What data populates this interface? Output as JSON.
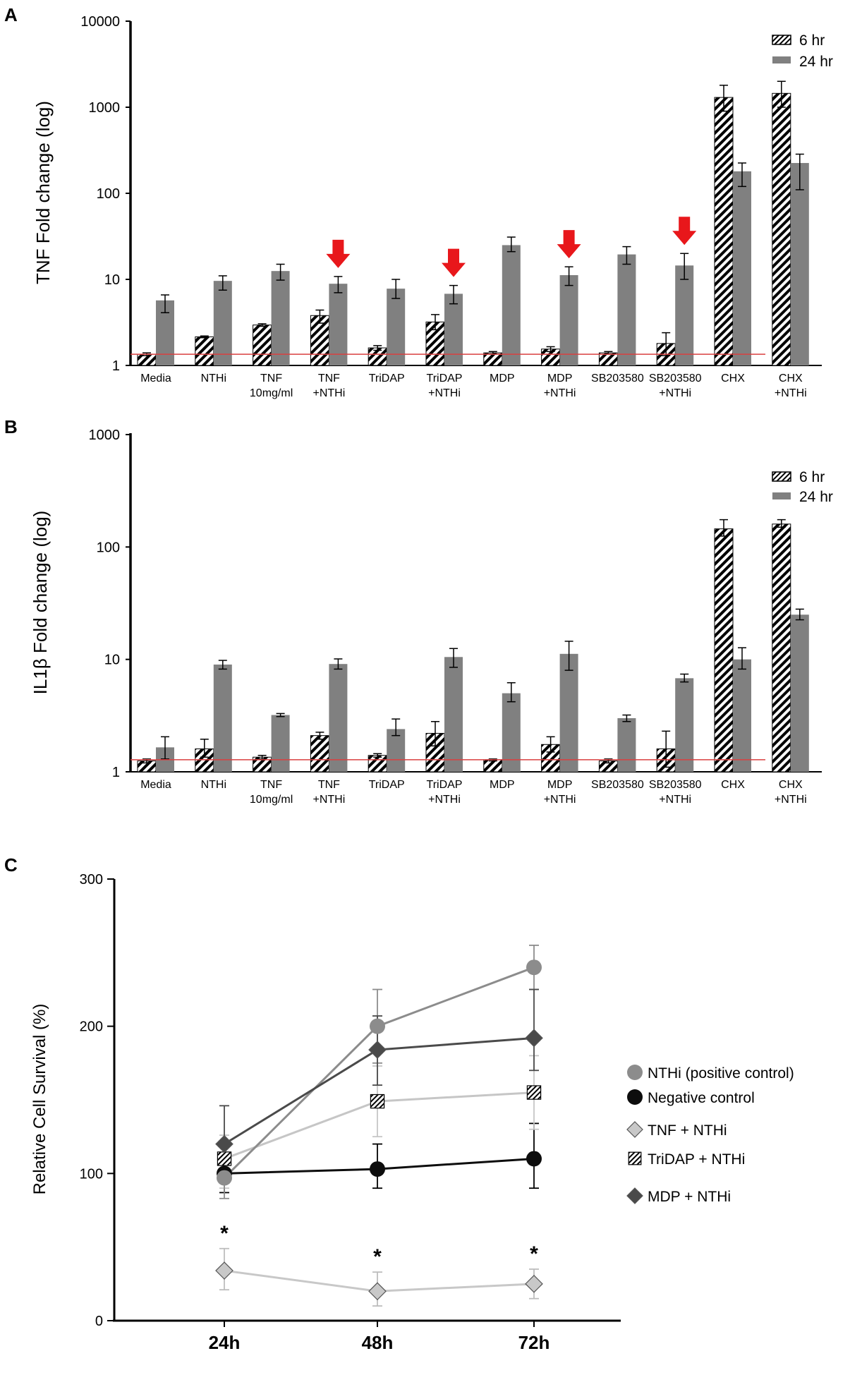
{
  "chart_data": [
    {
      "panel": "A",
      "type": "bar",
      "scale": "log",
      "ylabel": "TNF Fold change (log)",
      "ylim": [
        1,
        10000
      ],
      "yticks": [
        "1",
        "10",
        "100",
        "1000",
        "10000"
      ],
      "categories": [
        [
          "Media"
        ],
        [
          "NTHi"
        ],
        [
          "TNF",
          "10mg/ml"
        ],
        [
          "TNF",
          "+NTHi"
        ],
        [
          "TriDAP"
        ],
        [
          "TriDAP",
          "+NTHi"
        ],
        [
          "MDP"
        ],
        [
          "MDP",
          "+NTHi"
        ],
        [
          "SB203580"
        ],
        [
          "SB203580",
          "+NTHi"
        ],
        [
          "CHX"
        ],
        [
          "CHX",
          "+NTHi"
        ]
      ],
      "series": [
        {
          "name": "6 hr",
          "values": [
            1.35,
            2.15,
            2.95,
            3.8,
            1.6,
            3.2,
            1.4,
            1.55,
            1.4,
            1.8,
            1300,
            1450
          ],
          "err_low": [
            1.3,
            2.1,
            2.85,
            3.1,
            1.5,
            2.6,
            1.35,
            1.45,
            1.35,
            1.3,
            900,
            1000
          ],
          "err_high": [
            1.4,
            2.2,
            3.05,
            4.4,
            1.7,
            3.9,
            1.45,
            1.65,
            1.45,
            2.4,
            1800,
            2000
          ]
        },
        {
          "name": "24 hr",
          "values": [
            5.7,
            9.6,
            12.5,
            8.9,
            7.8,
            6.8,
            25.0,
            11.2,
            19.5,
            14.5,
            180,
            225
          ],
          "err_low": [
            4.1,
            7.5,
            9.8,
            7.0,
            6.0,
            5.2,
            21.0,
            8.5,
            15.0,
            10.0,
            120,
            110
          ],
          "err_high": [
            6.6,
            11.0,
            15.0,
            10.8,
            10.0,
            8.5,
            31.0,
            14.0,
            24.0,
            20.0,
            225,
            285
          ]
        }
      ],
      "baseline": 1.35,
      "arrows_over_categories": [
        3,
        5,
        7,
        9
      ],
      "legend_position": "top-right"
    },
    {
      "panel": "B",
      "type": "bar",
      "scale": "log",
      "ylabel": "IL1β Fold change (log)",
      "ylim": [
        1,
        1000
      ],
      "yticks": [
        "1",
        "10",
        "100",
        "1000"
      ],
      "categories": [
        [
          "Media"
        ],
        [
          "NTHi"
        ],
        [
          "TNF",
          "10mg/ml"
        ],
        [
          "TNF",
          "+NTHi"
        ],
        [
          "TriDAP"
        ],
        [
          "TriDAP",
          "+NTHi"
        ],
        [
          "MDP"
        ],
        [
          "MDP",
          "+NTHi"
        ],
        [
          "SB203580"
        ],
        [
          "SB203580",
          "+NTHi"
        ],
        [
          "CHX"
        ],
        [
          "CHX",
          "+NTHi"
        ]
      ],
      "series": [
        {
          "name": "6 hr",
          "values": [
            1.25,
            1.6,
            1.35,
            2.1,
            1.4,
            2.2,
            1.28,
            1.75,
            1.25,
            1.6,
            145,
            160
          ],
          "err_low": [
            1.2,
            1.35,
            1.3,
            1.95,
            1.35,
            1.7,
            1.25,
            1.5,
            1.2,
            1.1,
            125,
            150
          ],
          "err_high": [
            1.3,
            1.95,
            1.4,
            2.25,
            1.45,
            2.8,
            1.3,
            2.05,
            1.3,
            2.3,
            175,
            175
          ]
        },
        {
          "name": "24 hr",
          "values": [
            1.65,
            9.0,
            3.2,
            9.1,
            2.4,
            10.5,
            5.0,
            11.2,
            3.0,
            6.8,
            10.0,
            25.0
          ],
          "err_low": [
            1.3,
            8.2,
            3.1,
            8.2,
            2.1,
            8.5,
            4.2,
            8.0,
            2.8,
            6.3,
            8.2,
            22.5
          ],
          "err_high": [
            2.05,
            9.8,
            3.3,
            10.1,
            2.95,
            12.5,
            6.2,
            14.5,
            3.2,
            7.4,
            12.7,
            28.0
          ]
        }
      ],
      "baseline": 1.28,
      "legend_position": "top-right"
    },
    {
      "panel": "C",
      "type": "line",
      "ylabel": "Relative Cell Survival (%)",
      "ylim": [
        0,
        300
      ],
      "yticks": [
        "0",
        "100",
        "200",
        "300"
      ],
      "x": [
        "24h",
        "48h",
        "72h"
      ],
      "series": [
        {
          "name": "NTHi (positive control)",
          "marker": "circle",
          "color": "#8c8c8c",
          "values": [
            97,
            200,
            240
          ],
          "err_low": [
            83,
            175,
            225
          ],
          "err_high": [
            108,
            225,
            255
          ]
        },
        {
          "name": "Negative control",
          "marker": "circle",
          "color": "#0d0d0d",
          "values": [
            100,
            103,
            110
          ],
          "err_low": [
            87,
            90,
            90
          ],
          "err_high": [
            113,
            120,
            134
          ]
        },
        {
          "name": "TNF + NTHi",
          "marker": "diamond",
          "color": "#c8c8c8",
          "values": [
            34,
            20,
            25
          ],
          "err_low": [
            21,
            10,
            15
          ],
          "err_high": [
            49,
            33,
            35
          ]
        },
        {
          "name": "TriDAP + NTHi",
          "marker": "hatched-square",
          "color": "#c6c6c6",
          "values": [
            110,
            149,
            155
          ],
          "err_low": [
            90,
            125,
            130
          ],
          "err_high": [
            126,
            173,
            180
          ]
        },
        {
          "name": "MDP + NTHi",
          "marker": "diamond",
          "color": "#4a4a4a",
          "values": [
            120,
            184,
            192
          ],
          "err_low": [
            95,
            160,
            170
          ],
          "err_high": [
            146,
            207,
            225
          ]
        }
      ],
      "annotations": [
        "*",
        "*",
        "*"
      ],
      "legend_position": "right"
    }
  ],
  "figure": {
    "panel_letters": [
      "A",
      "B",
      "C"
    ]
  },
  "colors": {
    "bar_24h": "#808080",
    "hatch": "#000000",
    "baseline": "#d94040",
    "arrow": "#e8171b",
    "axis": "#000000"
  }
}
